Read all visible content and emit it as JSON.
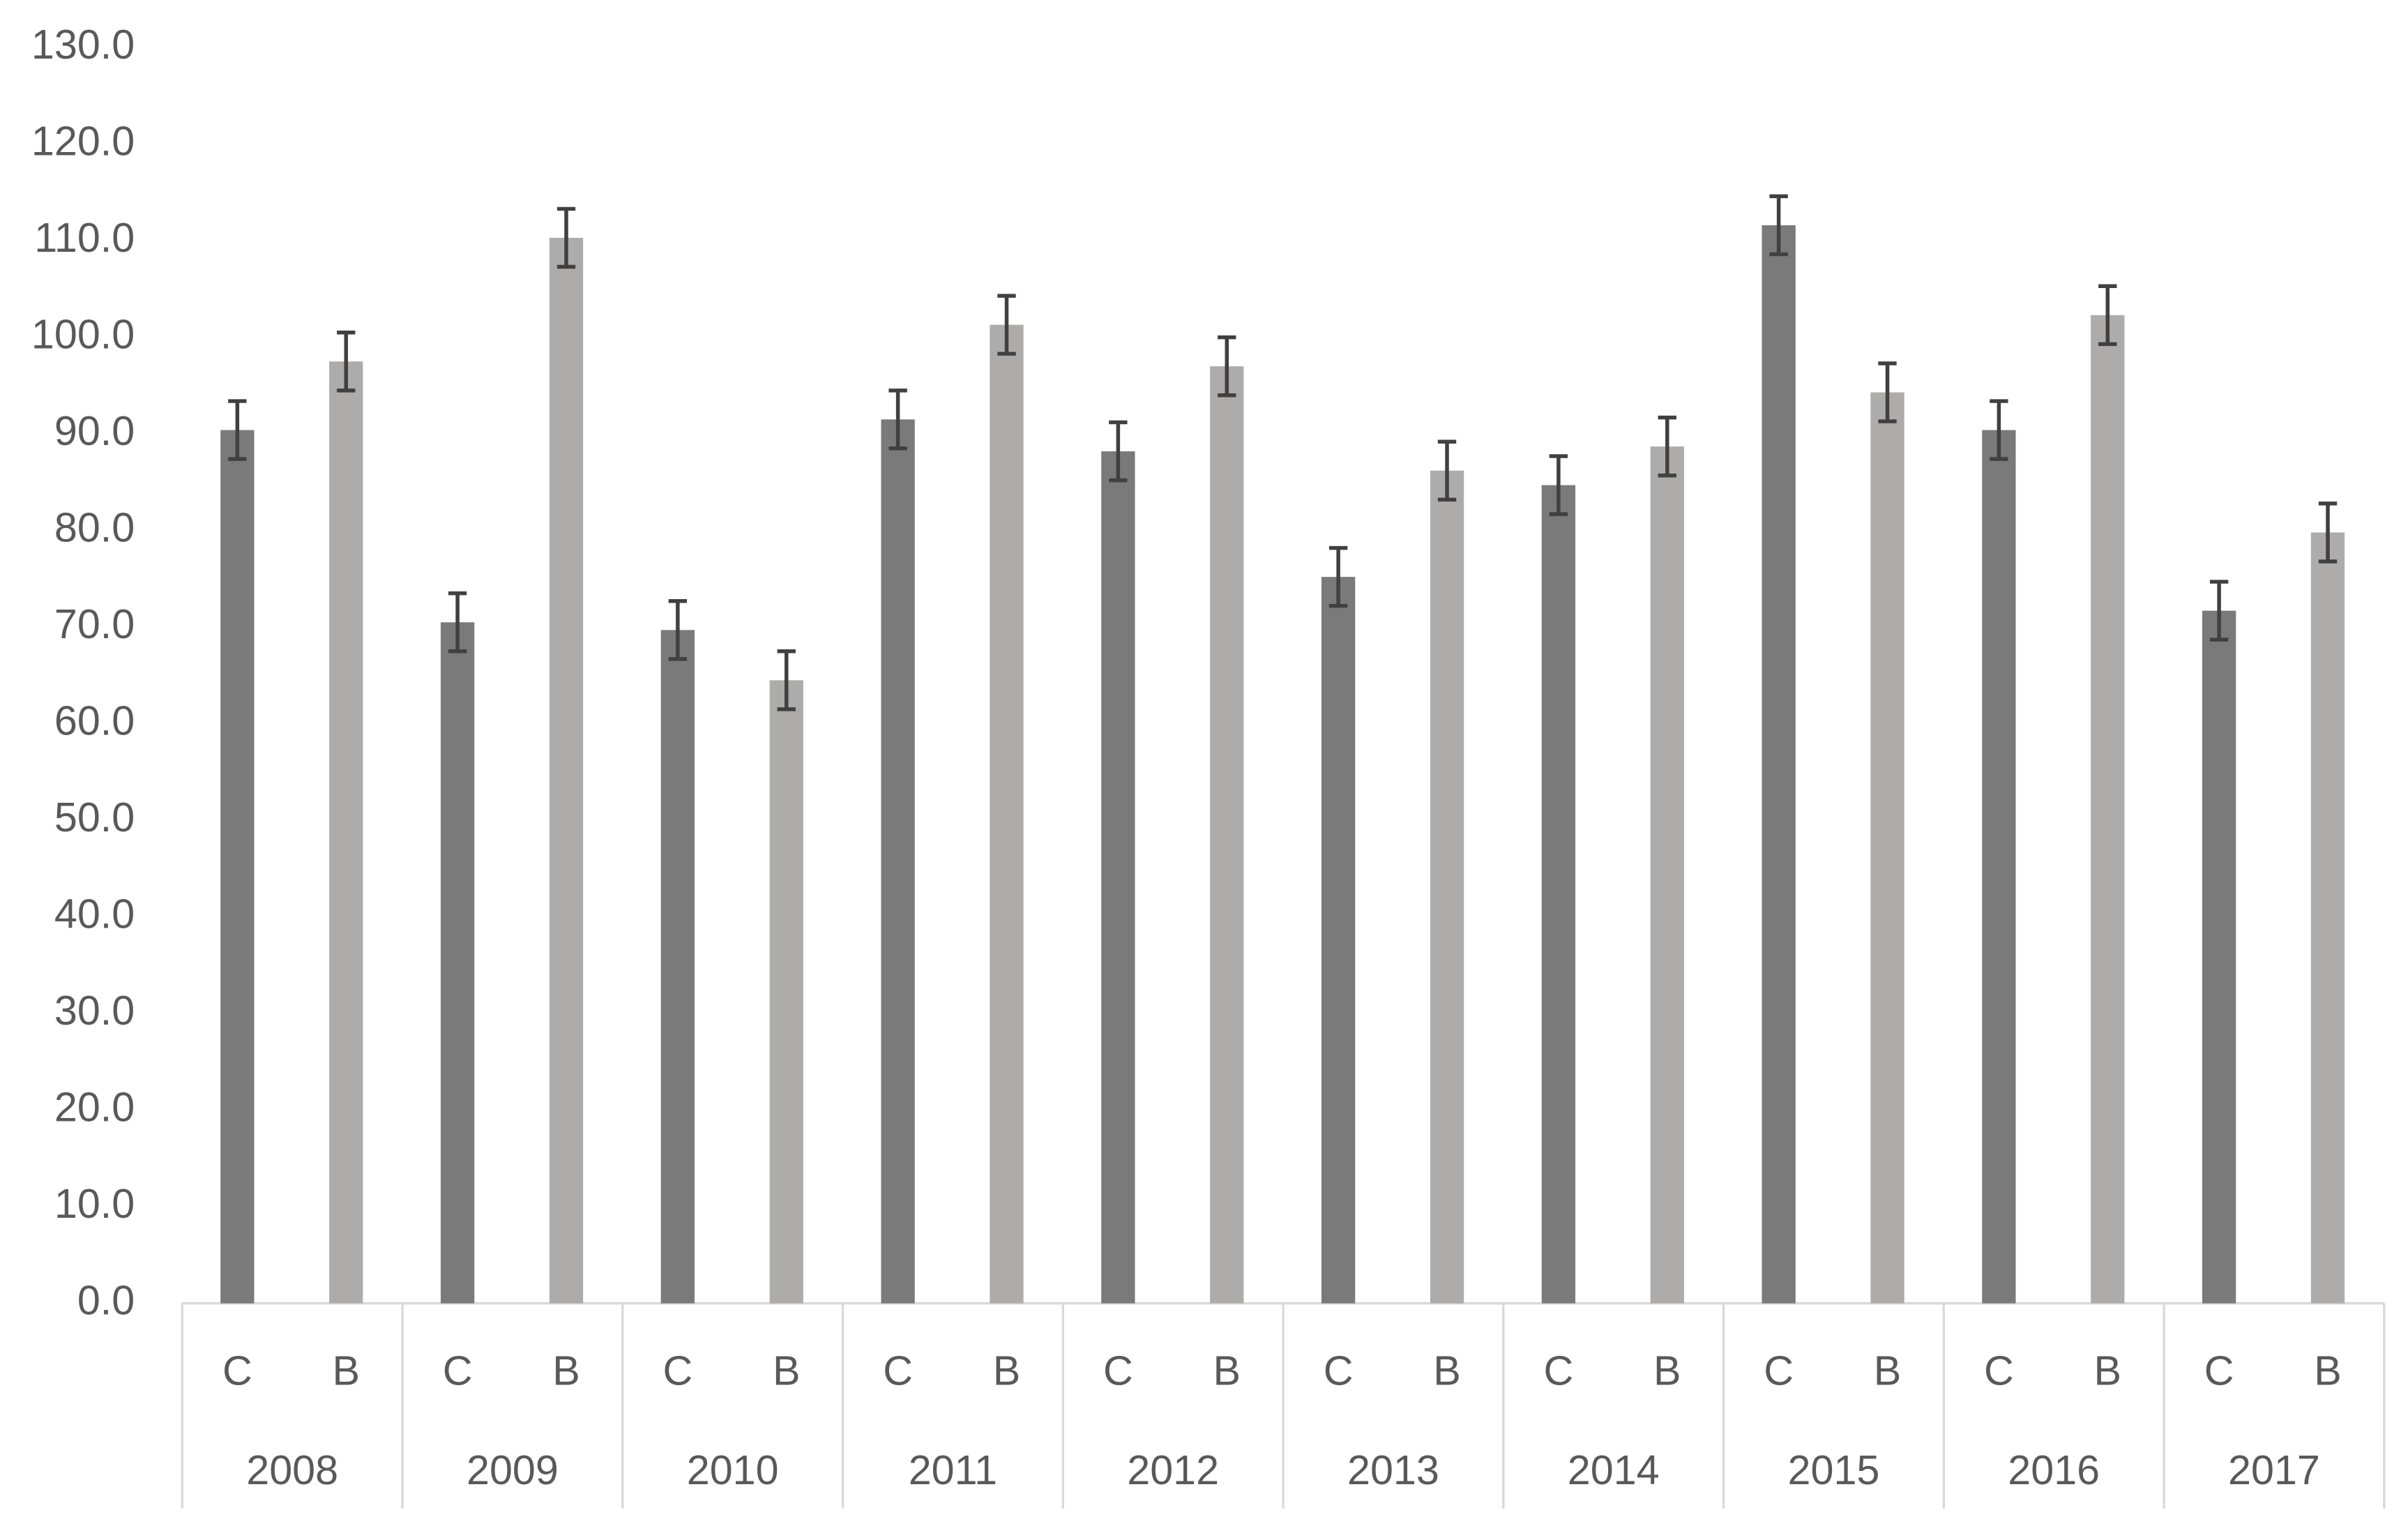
{
  "chart_data": {
    "type": "bar",
    "categories": [
      "2008",
      "2009",
      "2010",
      "2011",
      "2012",
      "2013",
      "2014",
      "2015",
      "2016",
      "2017"
    ],
    "series": [
      {
        "name": "C",
        "color": "#7a7a7a",
        "values": [
          90.4,
          70.5,
          69.7,
          91.5,
          88.2,
          75.2,
          84.7,
          111.6,
          90.4,
          71.7
        ],
        "errors": [
          3.0,
          3.0,
          3.0,
          3.0,
          3.0,
          3.0,
          3.0,
          3.0,
          3.0,
          3.0
        ]
      },
      {
        "name": "B",
        "color": "#aeabab",
        "values": [
          97.5,
          110.3,
          64.5,
          101.3,
          97.0,
          86.2,
          88.7,
          94.3,
          102.3,
          79.8
        ],
        "errors": [
          3.0,
          3.0,
          3.0,
          3.0,
          3.0,
          3.0,
          3.0,
          3.0,
          3.0,
          3.0
        ]
      }
    ],
    "error_color": "#404040",
    "ylim": [
      0,
      130
    ],
    "yticks": [
      {
        "value": 0,
        "label": "0.0"
      },
      {
        "value": 10,
        "label": "10.0"
      },
      {
        "value": 20,
        "label": "20.0"
      },
      {
        "value": 30,
        "label": "30.0"
      },
      {
        "value": 40,
        "label": "40.0"
      },
      {
        "value": 50,
        "label": "50.0"
      },
      {
        "value": 60,
        "label": "60.0"
      },
      {
        "value": 70,
        "label": "70.0"
      },
      {
        "value": 80,
        "label": "80.0"
      },
      {
        "value": 90,
        "label": "90.0"
      },
      {
        "value": 100,
        "label": "100.0"
      },
      {
        "value": 110,
        "label": "110.0"
      },
      {
        "value": 120,
        "label": "120.0"
      },
      {
        "value": 130,
        "label": "130.0"
      }
    ],
    "grid": false
  }
}
